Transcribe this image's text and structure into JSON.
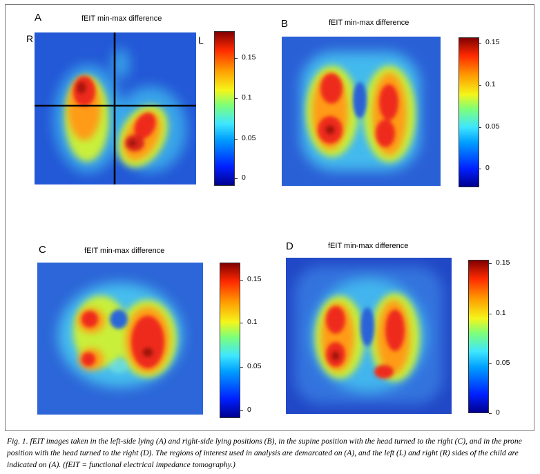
{
  "panels": [
    {
      "letter": "A",
      "title": "fEIT min-max difference",
      "side_left": "R",
      "side_right": "L",
      "colorbar_ticks": [
        "0.15",
        "0.1",
        "0.05",
        "0"
      ],
      "colorbar_range": [
        0,
        0.18
      ]
    },
    {
      "letter": "B",
      "title": "fEIT min-max difference",
      "colorbar_ticks": [
        "0.15",
        "0.1",
        "0.05",
        "0"
      ],
      "colorbar_range": [
        -0.01,
        0.16
      ]
    },
    {
      "letter": "C",
      "title": "fEIT min-max difference",
      "colorbar_ticks": [
        "0.15",
        "0.1",
        "0.05",
        "0"
      ],
      "colorbar_range": [
        -0.005,
        0.165
      ]
    },
    {
      "letter": "D",
      "title": "fEIT min-max difference",
      "colorbar_ticks": [
        "0.15",
        "0.1",
        "0.05",
        "0"
      ],
      "colorbar_range": [
        0,
        0.155
      ]
    }
  ],
  "colormap": [
    "#00008f",
    "#0020ff",
    "#00a0ff",
    "#3ee6ff",
    "#7cff7a",
    "#f5f51a",
    "#ff9a00",
    "#ff2a00",
    "#800000"
  ],
  "caption": "Fig. 1. fEIT images taken in the left-side lying (A) and right-side lying positions (B), in the supine position with the head turned to the right (C), and in the prone position with the head turned to the right (D). The regions of interest used in analysis are demarcated on (A), and the left (L) and right (R) sides of the child are indicated on (A). (fEIT = functional electrical impedance tomography.)"
}
